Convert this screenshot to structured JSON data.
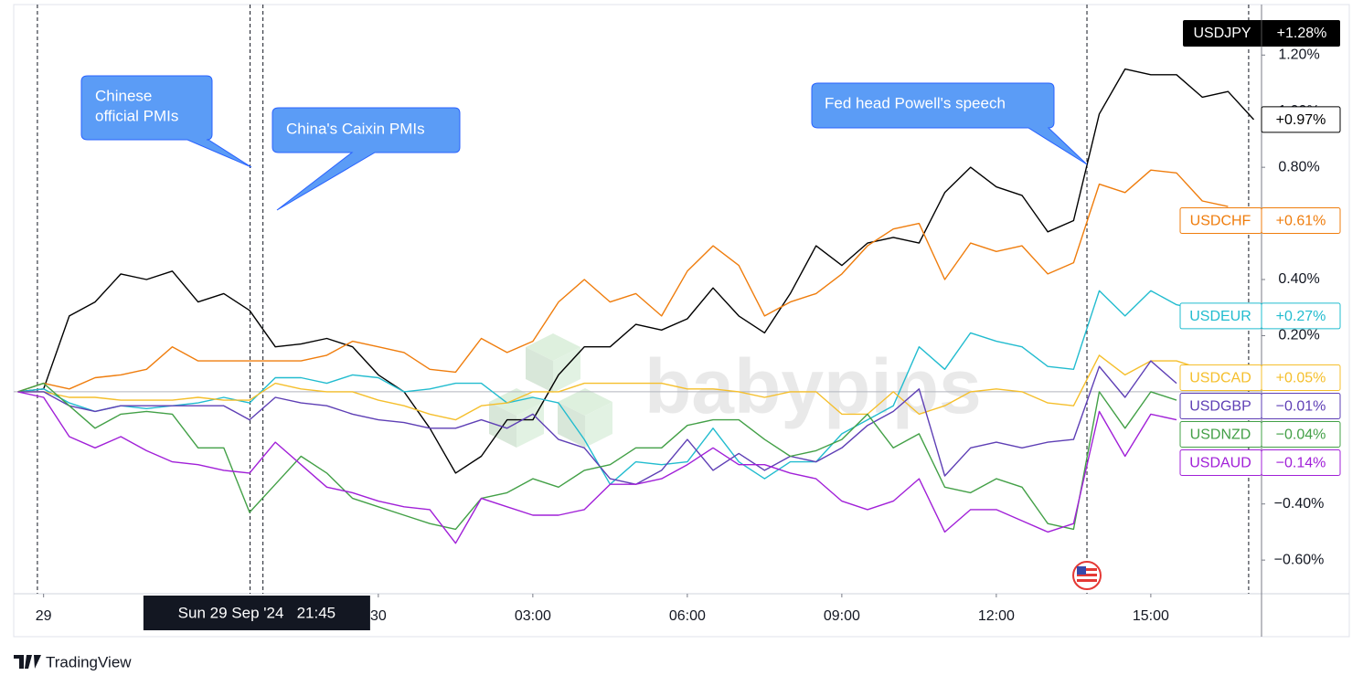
{
  "chart_data": {
    "type": "line",
    "header": {
      "change_label": "+1.28%"
    },
    "x": [
      -7,
      -6.5,
      -6,
      -5.5,
      -5,
      -4.5,
      -4,
      -3.5,
      -3,
      -2.5,
      -2,
      -1.5,
      -1,
      -0.5,
      0,
      0.5,
      1,
      1.5,
      2,
      2.5,
      3,
      3.5,
      4,
      4.5,
      5,
      5.5,
      6,
      6.5,
      7,
      7.5,
      8,
      8.5,
      9,
      9.5,
      10,
      10.5,
      11,
      11.5,
      12,
      12.5,
      13,
      13.5,
      14,
      14.5,
      15,
      15.5,
      16,
      16.5,
      17
    ],
    "series": [
      {
        "name": "USDJPY",
        "color": "#000000",
        "end_value": 0.97,
        "end_label": "+0.97%",
        "values": [
          0,
          0.01,
          0.27,
          0.32,
          0.42,
          0.4,
          0.43,
          0.32,
          0.35,
          0.29,
          0.16,
          0.17,
          0.19,
          0.16,
          0.06,
          0.0,
          -0.13,
          -0.29,
          -0.23,
          -0.1,
          -0.1,
          0.06,
          0.16,
          0.16,
          0.24,
          0.22,
          0.26,
          0.37,
          0.27,
          0.21,
          0.35,
          0.52,
          0.45,
          0.53,
          0.55,
          0.53,
          0.71,
          0.8,
          0.73,
          0.7,
          0.57,
          0.61,
          0.99,
          1.15,
          1.13,
          1.13,
          1.05,
          1.07,
          0.97
        ]
      },
      {
        "name": "USDCHF",
        "color": "#ef7d0d",
        "end_value": 0.61,
        "end_label": "+0.61%",
        "values": [
          0,
          0.03,
          0.01,
          0.05,
          0.06,
          0.08,
          0.16,
          0.11,
          0.11,
          0.11,
          0.11,
          0.11,
          0.13,
          0.18,
          0.16,
          0.14,
          0.08,
          0.07,
          0.19,
          0.14,
          0.18,
          0.32,
          0.4,
          0.32,
          0.35,
          0.27,
          0.43,
          0.52,
          0.45,
          0.27,
          0.32,
          0.35,
          0.42,
          0.52,
          0.58,
          0.6,
          0.4,
          0.53,
          0.5,
          0.52,
          0.42,
          0.46,
          0.74,
          0.71,
          0.79,
          0.78,
          0.68,
          0.66,
          null
        ]
      },
      {
        "name": "USDEUR",
        "color": "#22bccf",
        "end_value": 0.27,
        "end_label": "+0.27%",
        "values": [
          0,
          0.01,
          -0.04,
          -0.07,
          -0.05,
          -0.06,
          -0.05,
          -0.04,
          -0.02,
          -0.04,
          0.05,
          0.05,
          0.03,
          0.06,
          0.05,
          0.0,
          0.01,
          0.03,
          0.03,
          -0.04,
          -0.02,
          -0.04,
          -0.17,
          -0.33,
          -0.25,
          -0.26,
          -0.25,
          -0.13,
          -0.25,
          -0.31,
          -0.25,
          -0.25,
          -0.15,
          -0.1,
          -0.05,
          0.16,
          0.08,
          0.21,
          0.18,
          0.16,
          0.09,
          0.08,
          0.36,
          0.27,
          0.36,
          0.31,
          0.29,
          null,
          null
        ]
      },
      {
        "name": "USDCAD",
        "color": "#f5bf2c",
        "end_value": 0.05,
        "end_label": "+0.05%",
        "values": [
          0,
          0.0,
          -0.02,
          -0.02,
          -0.03,
          -0.03,
          -0.03,
          -0.02,
          -0.03,
          -0.03,
          0.03,
          0.01,
          0.0,
          0.0,
          -0.03,
          -0.05,
          -0.08,
          -0.1,
          -0.05,
          -0.04,
          0.0,
          0.0,
          0.03,
          0.03,
          0.03,
          0.03,
          0.01,
          0.01,
          0.0,
          -0.02,
          0.0,
          0.0,
          -0.08,
          -0.08,
          0.0,
          -0.08,
          -0.05,
          0.0,
          0.01,
          0.0,
          -0.04,
          -0.05,
          0.13,
          0.06,
          0.11,
          0.11,
          0.08,
          null,
          null
        ]
      },
      {
        "name": "USDGBP",
        "color": "#5e3fb5",
        "end_value": -0.01,
        "end_label": "−0.01%",
        "values": [
          0,
          0.0,
          -0.05,
          -0.07,
          -0.05,
          -0.05,
          -0.05,
          -0.05,
          -0.05,
          -0.1,
          -0.02,
          -0.04,
          -0.05,
          -0.08,
          -0.1,
          -0.11,
          -0.13,
          -0.13,
          -0.1,
          -0.13,
          -0.08,
          -0.17,
          -0.2,
          -0.31,
          -0.33,
          -0.28,
          -0.17,
          -0.28,
          -0.22,
          -0.28,
          -0.23,
          -0.25,
          -0.2,
          -0.12,
          -0.07,
          0.01,
          -0.3,
          -0.2,
          -0.18,
          -0.2,
          -0.18,
          -0.17,
          0.09,
          -0.02,
          0.11,
          0.03,
          null,
          null,
          null
        ]
      },
      {
        "name": "USDNZD",
        "color": "#43a047",
        "end_value": -0.04,
        "end_label": "−0.04%",
        "values": [
          0,
          0.03,
          -0.05,
          -0.13,
          -0.08,
          -0.07,
          -0.08,
          -0.2,
          -0.2,
          -0.43,
          -0.33,
          -0.23,
          -0.29,
          -0.38,
          -0.41,
          -0.44,
          -0.47,
          -0.49,
          -0.38,
          -0.36,
          -0.31,
          -0.34,
          -0.28,
          -0.26,
          -0.2,
          -0.2,
          -0.12,
          -0.1,
          -0.1,
          -0.17,
          -0.23,
          -0.21,
          -0.17,
          -0.08,
          -0.2,
          -0.15,
          -0.34,
          -0.36,
          -0.31,
          -0.34,
          -0.47,
          -0.49,
          0.0,
          -0.13,
          0.0,
          -0.03,
          null,
          null,
          null
        ]
      },
      {
        "name": "USDAUD",
        "color": "#a120d8",
        "end_value": -0.14,
        "end_label": "−0.14%",
        "values": [
          0,
          -0.02,
          -0.16,
          -0.2,
          -0.16,
          -0.21,
          -0.25,
          -0.26,
          -0.28,
          -0.29,
          -0.18,
          -0.26,
          -0.34,
          -0.36,
          -0.39,
          -0.41,
          -0.42,
          -0.54,
          -0.38,
          -0.41,
          -0.44,
          -0.44,
          -0.42,
          -0.33,
          -0.33,
          -0.31,
          -0.26,
          -0.2,
          -0.26,
          -0.26,
          -0.29,
          -0.31,
          -0.39,
          -0.42,
          -0.39,
          -0.31,
          -0.5,
          -0.42,
          -0.42,
          -0.46,
          -0.5,
          -0.47,
          -0.07,
          -0.23,
          -0.08,
          -0.1,
          null,
          null,
          null
        ]
      }
    ],
    "xlim": [
      -7.08,
      17.15
    ],
    "ylim": [
      -0.72,
      1.38
    ],
    "baseline": 0,
    "xticks": [
      {
        "value": -6.5,
        "label": "29"
      },
      {
        "value": 0,
        "label": "30"
      },
      {
        "value": 3,
        "label": "03:00"
      },
      {
        "value": 6,
        "label": "06:00"
      },
      {
        "value": 9,
        "label": "09:00"
      },
      {
        "value": 12,
        "label": "12:00"
      },
      {
        "value": 15,
        "label": "15:00"
      }
    ],
    "yticks": [
      {
        "value": 1.2,
        "label": "1.20%"
      },
      {
        "value": 1.0,
        "label": "1.00%"
      },
      {
        "value": 0.8,
        "label": "0.80%"
      },
      {
        "value": 0.4,
        "label": "0.40%"
      },
      {
        "value": 0.2,
        "label": "0.20%"
      },
      {
        "value": -0.4,
        "label": "−0.40%"
      },
      {
        "value": -0.6,
        "label": "−0.60%"
      }
    ],
    "vlines": [
      -6.62,
      -2.49,
      -2.24,
      13.76,
      16.9
    ],
    "crosshair": {
      "x": -2.36,
      "label": "Sun 29 Sep '24   21:45"
    },
    "annotations": [
      {
        "lines": [
          "Chinese",
          "official PMIs"
        ]
      },
      {
        "lines": [
          "China's Caixin PMIs"
        ]
      },
      {
        "lines": [
          "Fed head Powell's speech"
        ]
      }
    ],
    "watermark": "babypips",
    "brand": "TradingView"
  }
}
